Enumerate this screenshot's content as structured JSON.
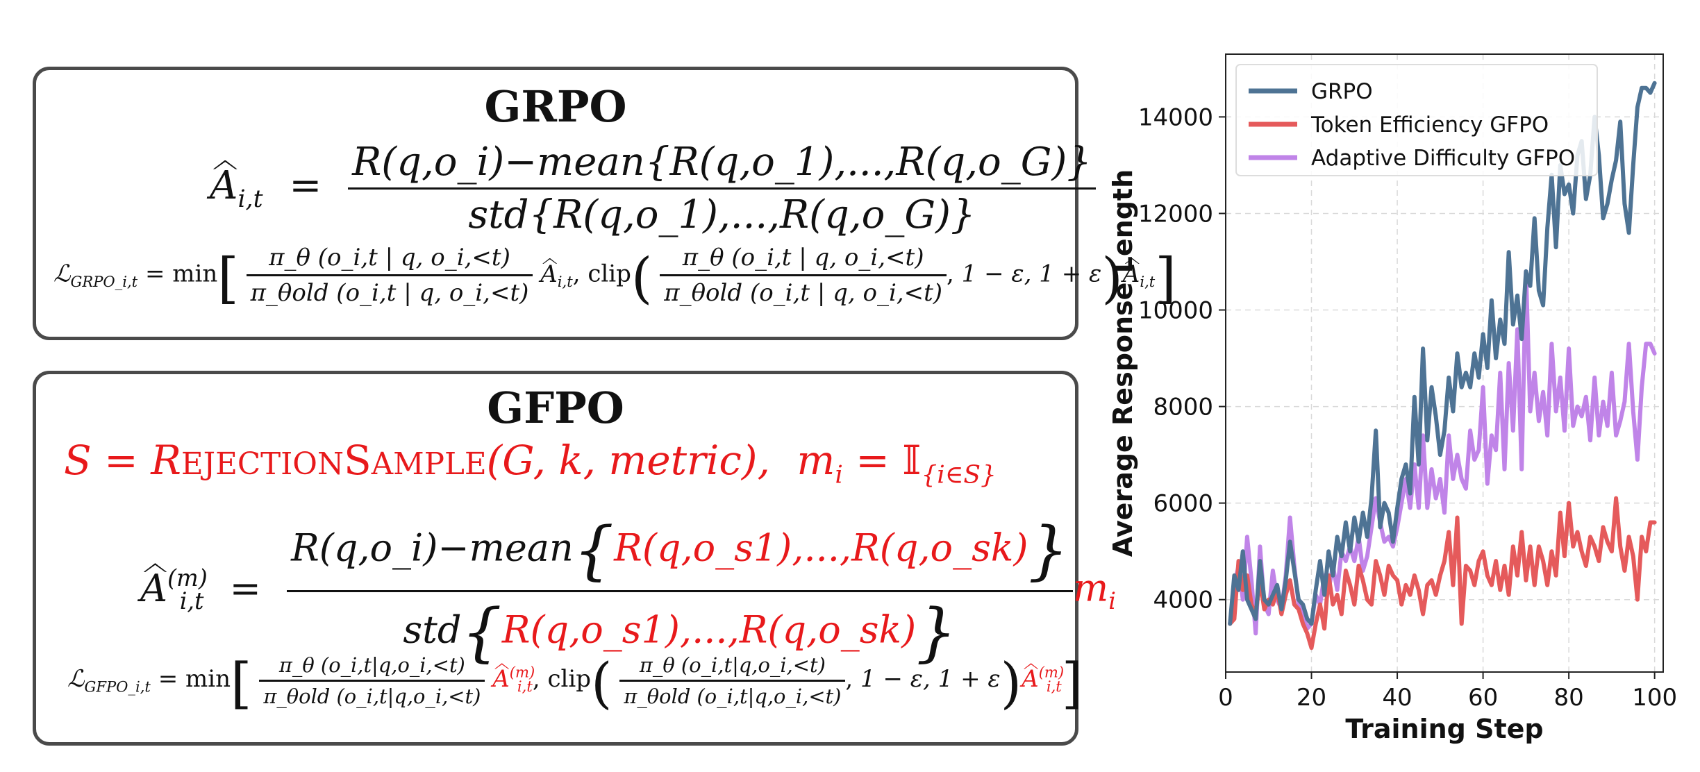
{
  "panels": {
    "grpo": {
      "title": "GRPO",
      "adv_lhs": "A",
      "adv_sub": "i,t",
      "adv_num": "R(q,o_i)−mean{R(q,o_1),...,R(q,o_G)}",
      "adv_den": "std{R(q,o_1),...,R(q,o_G)}",
      "loss_lhs": "ℒ",
      "loss_sub": "GRPO_i,t",
      "loss_min": "= min",
      "loss_ratio_num": "π_θ (o_i,t | q, o_i,<t)",
      "loss_ratio_den": "π_θold (o_i,t | q, o_i,<t)",
      "loss_clip": "clip",
      "loss_range": "1 − ε, 1 + ε"
    },
    "gfpo": {
      "title": "GFPO",
      "sample_line_a": "S = R",
      "sample_func_small1": "EJECTION",
      "sample_func_cap2": "S",
      "sample_func_small2": "AMPLE",
      "sample_args": "(G, k, metric),",
      "mask_lhs": "m",
      "mask_sub": "i",
      "mask_rhs": "= 𝕀",
      "mask_cond": "{i∈S}",
      "adv_lhs": "A",
      "adv_sub": "i,t",
      "adv_sup": "(m)",
      "adv_num_black": "R(q,o_i)−mean",
      "adv_num_red": "R(q,o_s1),...,R(q,o_sk)",
      "adv_den_black": "std",
      "adv_den_red": "R(q,o_s1),...,R(q,o_sk)",
      "adv_mult": "m",
      "adv_mult_sub": "i",
      "loss_lhs": "ℒ",
      "loss_sub": "GFPO_i,t",
      "loss_min": "= min",
      "loss_ratio_num": "π_θ (o_i,t|q,o_i,<t)",
      "loss_ratio_den": "π_θold (o_i,t|q,o_i,<t)",
      "loss_clip": "clip",
      "loss_range": "1 − ε, 1 + ε"
    }
  },
  "chart_data": {
    "type": "line",
    "title": "",
    "xlabel": "Training Step",
    "ylabel": "Average Response Length",
    "xlim": [
      0,
      102
    ],
    "ylim": [
      2500,
      15300
    ],
    "xticks": [
      0,
      20,
      40,
      60,
      80,
      100
    ],
    "yticks": [
      4000,
      6000,
      8000,
      10000,
      12000,
      14000
    ],
    "grid": true,
    "legend_position": "top-left",
    "series": [
      {
        "name": "GRPO",
        "color": "#4e7394",
        "x": [
          1,
          2,
          3,
          4,
          5,
          6,
          7,
          8,
          9,
          10,
          11,
          12,
          13,
          14,
          15,
          16,
          17,
          18,
          19,
          20,
          21,
          22,
          23,
          24,
          25,
          26,
          27,
          28,
          29,
          30,
          31,
          32,
          33,
          34,
          35,
          36,
          37,
          38,
          39,
          40,
          41,
          42,
          43,
          44,
          45,
          46,
          47,
          48,
          49,
          50,
          51,
          52,
          53,
          54,
          55,
          56,
          57,
          58,
          59,
          60,
          61,
          62,
          63,
          64,
          65,
          66,
          67,
          68,
          69,
          70,
          71,
          72,
          73,
          74,
          75,
          76,
          77,
          78,
          79,
          80,
          81,
          82,
          83,
          84,
          85,
          86,
          87,
          88,
          89,
          90,
          91,
          92,
          93,
          94,
          95,
          96,
          97,
          98,
          99,
          100
        ],
        "y": [
          3500,
          4500,
          4200,
          5000,
          4000,
          3800,
          3600,
          4800,
          4000,
          3900,
          4100,
          4300,
          3800,
          4400,
          5200,
          4600,
          4000,
          3900,
          3600,
          3500,
          4200,
          4800,
          4100,
          5000,
          4500,
          5300,
          4900,
          5600,
          5000,
          5700,
          5200,
          5800,
          5300,
          6100,
          7500,
          5500,
          6000,
          5800,
          5200,
          5900,
          6500,
          6800,
          6200,
          8200,
          6800,
          9200,
          7300,
          8400,
          7800,
          7000,
          7500,
          8600,
          7900,
          9100,
          8400,
          8700,
          8400,
          9100,
          8600,
          9500,
          8800,
          10200,
          9000,
          9800,
          9300,
          11200,
          9700,
          10300,
          9400,
          10800,
          10500,
          11900,
          10400,
          10100,
          11700,
          12800,
          11300,
          13000,
          12400,
          12600,
          12000,
          13200,
          13500,
          12300,
          12800,
          14000,
          13200,
          11900,
          12200,
          12700,
          13100,
          13900,
          12200,
          11600,
          13000,
          14200,
          14600,
          14600,
          14500,
          14700
        ]
      },
      {
        "name": "Token Efficiency GFPO",
        "color": "#e55a5b",
        "x": [
          1,
          2,
          3,
          4,
          5,
          6,
          7,
          8,
          9,
          10,
          11,
          12,
          13,
          14,
          15,
          16,
          17,
          18,
          19,
          20,
          21,
          22,
          23,
          24,
          25,
          26,
          27,
          28,
          29,
          30,
          31,
          32,
          33,
          34,
          35,
          36,
          37,
          38,
          39,
          40,
          41,
          42,
          43,
          44,
          45,
          46,
          47,
          48,
          49,
          50,
          51,
          52,
          53,
          54,
          55,
          56,
          57,
          58,
          59,
          60,
          61,
          62,
          63,
          64,
          65,
          66,
          67,
          68,
          69,
          70,
          71,
          72,
          73,
          74,
          75,
          76,
          77,
          78,
          79,
          80,
          81,
          82,
          83,
          84,
          85,
          86,
          87,
          88,
          89,
          90,
          91,
          92,
          93,
          94,
          95,
          96,
          97,
          98,
          99,
          100
        ],
        "y": [
          3500,
          3600,
          4800,
          4200,
          4500,
          3900,
          3700,
          4400,
          3800,
          4000,
          3900,
          4200,
          3700,
          4100,
          4400,
          3900,
          3800,
          3500,
          3300,
          3000,
          3500,
          3900,
          3400,
          4500,
          3900,
          4100,
          3700,
          4600,
          4300,
          3900,
          4700,
          4400,
          4000,
          3900,
          4800,
          4500,
          4100,
          4700,
          4500,
          4400,
          3900,
          4300,
          4100,
          4500,
          4200,
          3700,
          4300,
          4400,
          4100,
          4500,
          4800,
          5400,
          4300,
          5700,
          3500,
          4700,
          4600,
          4300,
          4800,
          5000,
          4500,
          4300,
          4800,
          4200,
          4700,
          4100,
          5100,
          4500,
          5400,
          4400,
          5100,
          4300,
          5100,
          4800,
          4300,
          5000,
          4500,
          5800,
          4900,
          6000,
          5100,
          5400,
          5000,
          4700,
          5300,
          5100,
          4800,
          5500,
          5200,
          5000,
          6100,
          5100,
          4600,
          5300,
          4900,
          4000,
          5300,
          5000,
          5600,
          5600
        ]
      },
      {
        "name": "Adaptive Difficulty GFPO",
        "color": "#c084e8",
        "x": [
          1,
          2,
          3,
          4,
          5,
          6,
          7,
          8,
          9,
          10,
          11,
          12,
          13,
          14,
          15,
          16,
          17,
          18,
          19,
          20,
          21,
          22,
          23,
          24,
          25,
          26,
          27,
          28,
          29,
          30,
          31,
          32,
          33,
          34,
          35,
          36,
          37,
          38,
          39,
          40,
          41,
          42,
          43,
          44,
          45,
          46,
          47,
          48,
          49,
          50,
          51,
          52,
          53,
          54,
          55,
          56,
          57,
          58,
          59,
          60,
          61,
          62,
          63,
          64,
          65,
          66,
          67,
          68,
          69,
          70,
          71,
          72,
          73,
          74,
          75,
          76,
          77,
          78,
          79,
          80,
          81,
          82,
          83,
          84,
          85,
          86,
          87,
          88,
          89,
          90,
          91,
          92,
          93,
          94,
          95,
          96,
          97,
          98,
          99,
          100
        ],
        "y": [
          3500,
          4300,
          4700,
          4000,
          5300,
          4400,
          3300,
          5100,
          3900,
          3700,
          4600,
          4000,
          3800,
          4500,
          5700,
          4700,
          3900,
          3700,
          3400,
          3500,
          4100,
          3900,
          4500,
          4200,
          4700,
          4200,
          5000,
          4800,
          5100,
          4800,
          5300,
          4600,
          4900,
          5500,
          6100,
          5600,
          5200,
          5300,
          5100,
          5500,
          6000,
          6500,
          5900,
          6800,
          5900,
          7400,
          5900,
          6700,
          6100,
          6500,
          5800,
          7400,
          6500,
          7000,
          6500,
          6300,
          7500,
          6900,
          7100,
          8400,
          6400,
          7400,
          7100,
          8700,
          6700,
          8900,
          7500,
          9600,
          6700,
          10800,
          7900,
          8700,
          7700,
          8300,
          7400,
          9300,
          7900,
          8600,
          7500,
          9200,
          7600,
          8000,
          7800,
          8200,
          7300,
          8600,
          7400,
          8100,
          7600,
          8700,
          7400,
          7700,
          8100,
          9300,
          7900,
          6900,
          8400,
          9300,
          9300,
          9100
        ]
      }
    ]
  }
}
